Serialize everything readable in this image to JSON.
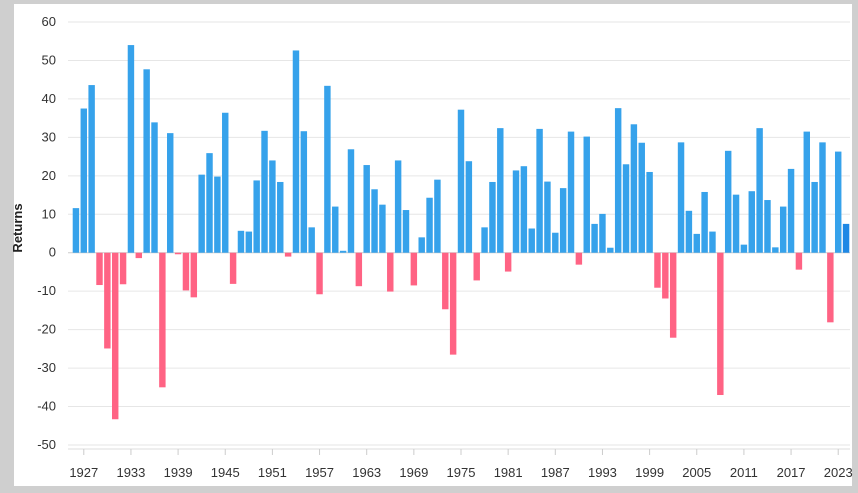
{
  "chart_data": {
    "type": "bar",
    "title": "",
    "xlabel": "",
    "ylabel": "Returns",
    "ylim": [
      -50,
      60
    ],
    "yticks": [
      -50,
      -40,
      -30,
      -20,
      -10,
      0,
      10,
      20,
      30,
      40,
      50,
      60
    ],
    "xtick_labels": [
      "1927",
      "1933",
      "1939",
      "1945",
      "1951",
      "1957",
      "1963",
      "1969",
      "1975",
      "1981",
      "1987",
      "1993",
      "1999",
      "2005",
      "2011",
      "2017",
      "2023"
    ],
    "grid": true,
    "legend": "none",
    "colors": {
      "positive": "#36a2eb",
      "negative": "#ff6384",
      "highlight": "#1e88e5"
    },
    "categories": [
      1926,
      1927,
      1928,
      1929,
      1930,
      1931,
      1932,
      1933,
      1934,
      1935,
      1936,
      1937,
      1938,
      1939,
      1940,
      1941,
      1942,
      1943,
      1944,
      1945,
      1946,
      1947,
      1948,
      1949,
      1950,
      1951,
      1952,
      1953,
      1954,
      1955,
      1956,
      1957,
      1958,
      1959,
      1960,
      1961,
      1962,
      1963,
      1964,
      1965,
      1966,
      1967,
      1968,
      1969,
      1970,
      1971,
      1972,
      1973,
      1974,
      1975,
      1976,
      1977,
      1978,
      1979,
      1980,
      1981,
      1982,
      1983,
      1984,
      1985,
      1986,
      1987,
      1988,
      1989,
      1990,
      1991,
      1992,
      1993,
      1994,
      1995,
      1996,
      1997,
      1998,
      1999,
      2000,
      2001,
      2002,
      2003,
      2004,
      2005,
      2006,
      2007,
      2008,
      2009,
      2010,
      2011,
      2012,
      2013,
      2014,
      2015,
      2016,
      2017,
      2018,
      2019,
      2020,
      2021,
      2022,
      2023,
      2024
    ],
    "values": [
      11.6,
      37.5,
      43.6,
      -8.4,
      -24.9,
      -43.3,
      -8.2,
      54.0,
      -1.4,
      47.7,
      33.9,
      -35.0,
      31.1,
      -0.4,
      -9.8,
      -11.6,
      20.3,
      25.9,
      19.8,
      36.4,
      -8.1,
      5.7,
      5.5,
      18.8,
      31.7,
      24.0,
      18.4,
      -1.0,
      52.6,
      31.6,
      6.6,
      -10.8,
      43.4,
      12.0,
      0.5,
      26.9,
      -8.7,
      22.8,
      16.5,
      12.5,
      -10.1,
      24.0,
      11.1,
      -8.5,
      4.0,
      14.3,
      19.0,
      -14.7,
      -26.5,
      37.2,
      23.8,
      -7.2,
      6.6,
      18.4,
      32.4,
      -4.9,
      21.4,
      22.5,
      6.3,
      32.2,
      18.5,
      5.2,
      16.8,
      31.5,
      -3.1,
      30.2,
      7.5,
      10.1,
      1.3,
      37.6,
      23.0,
      33.4,
      28.6,
      21.0,
      -9.1,
      -11.9,
      -22.1,
      28.7,
      10.9,
      4.9,
      15.8,
      5.5,
      -37.0,
      26.5,
      15.1,
      2.1,
      16.0,
      32.4,
      13.7,
      1.4,
      12.0,
      21.8,
      -4.4,
      31.5,
      18.4,
      28.7,
      -18.1,
      26.3,
      7.5
    ]
  }
}
